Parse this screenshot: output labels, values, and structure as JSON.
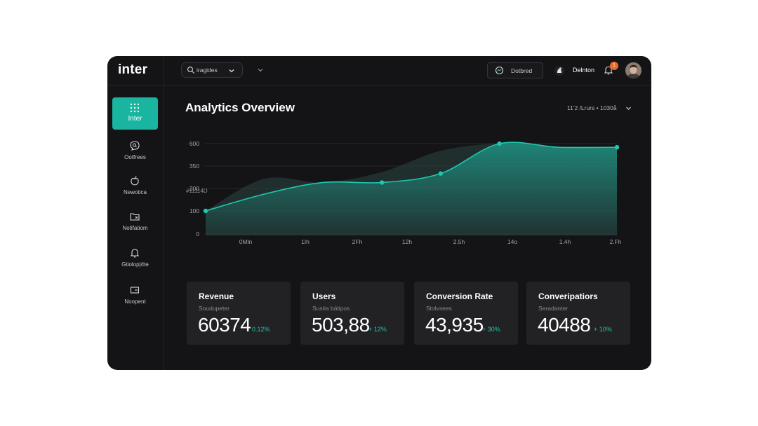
{
  "app": {
    "logo": "inter"
  },
  "header": {
    "search_value": "iragides",
    "dashboard_label": "Dotbred",
    "user_name": "Delnton",
    "notification_count": "1"
  },
  "sidebar": {
    "items": [
      {
        "label": "Inter",
        "icon": "grid-icon",
        "active": true
      },
      {
        "label": "Ootfrees",
        "icon": "chat-search-icon",
        "active": false
      },
      {
        "label": "Newotica",
        "icon": "apple-icon",
        "active": false
      },
      {
        "label": "Notifatiom",
        "icon": "folder-icon",
        "active": false
      },
      {
        "label": "Gtiolop|/tte",
        "icon": "bell-icon",
        "active": false
      },
      {
        "label": "Noopent",
        "icon": "terminal-icon",
        "active": false
      }
    ]
  },
  "main": {
    "title": "Analytics Overview",
    "range_label": "11'2 /Lrurs • 1030å"
  },
  "chart_data": {
    "type": "area",
    "y_header": "#11114D",
    "y_ticks": [
      "600",
      "350",
      "200",
      "100",
      "0"
    ],
    "x_ticks": [
      "0Mln",
      "1Ih",
      "2Fh",
      "12h",
      "2.5h",
      "14o",
      "1.4h",
      "2.Fh"
    ],
    "series": [
      {
        "values": [
          100,
          175,
          240,
          240,
          300,
          600,
          560,
          560
        ]
      }
    ],
    "ghost_series": [
      100,
      265,
      240,
      310,
      520,
      600,
      560,
      560
    ],
    "accent": "#1fc7ae"
  },
  "cards": [
    {
      "title": "Revenue",
      "subtitle": "Soudupeter",
      "value": "60374",
      "delta": "0.12%"
    },
    {
      "title": "Users",
      "subtitle": "Sustia bätipos",
      "value": "503,88",
      "delta": "+ 12%"
    },
    {
      "title": "Conversion Rate",
      "subtitle": "Stolvsees",
      "value": "43,935",
      "delta": "+ 30%"
    },
    {
      "title": "Converipatiors",
      "subtitle": "Seradanter",
      "value": "40488",
      "delta": "+ 10%"
    }
  ]
}
